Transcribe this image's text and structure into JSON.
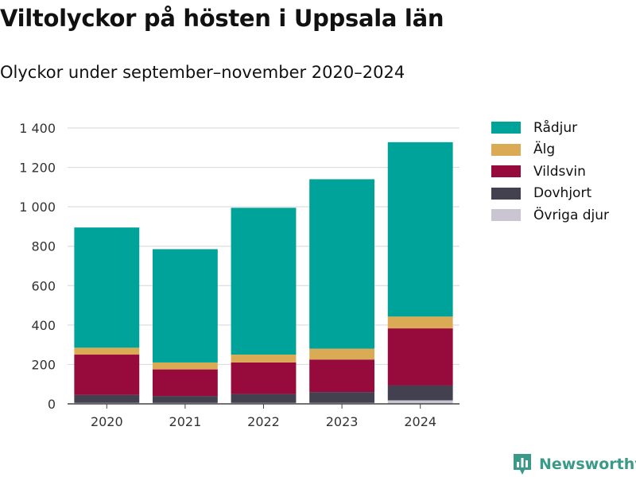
{
  "chart_data": {
    "type": "bar",
    "stacked": true,
    "title": "Viltolyckor på hösten i Uppsala län",
    "subtitle": "Olyckor under september–november 2020–2024",
    "xlabel": "",
    "ylabel": "",
    "categories": [
      "2020",
      "2021",
      "2022",
      "2023",
      "2024"
    ],
    "ylim": [
      0,
      1400
    ],
    "yticks": [
      0,
      200,
      400,
      600,
      800,
      1000,
      1200,
      1400
    ],
    "ytick_labels": [
      "0",
      "200",
      "400",
      "600",
      "800",
      "1 000",
      "1 200",
      "1 400"
    ],
    "legend_position": "right",
    "series": [
      {
        "name": "Övriga djur",
        "color": "#c9c6d1",
        "values": [
          5,
          5,
          5,
          5,
          18
        ]
      },
      {
        "name": "Dovhjort",
        "color": "#434150",
        "values": [
          40,
          35,
          45,
          55,
          75
        ]
      },
      {
        "name": "Vildsvin",
        "color": "#960a3c",
        "values": [
          205,
          135,
          160,
          165,
          290
        ]
      },
      {
        "name": "Älg",
        "color": "#dbaa55",
        "values": [
          35,
          35,
          40,
          55,
          60
        ]
      },
      {
        "name": "Rådjur",
        "color": "#00a39a",
        "values": [
          610,
          575,
          745,
          860,
          885
        ]
      }
    ],
    "legend_order": [
      "Rådjur",
      "Älg",
      "Vildsvin",
      "Dovhjort",
      "Övriga djur"
    ]
  },
  "brand": {
    "name": "Newsworthy",
    "icon": "bar-chart-icon",
    "color": "#3a9a87"
  }
}
